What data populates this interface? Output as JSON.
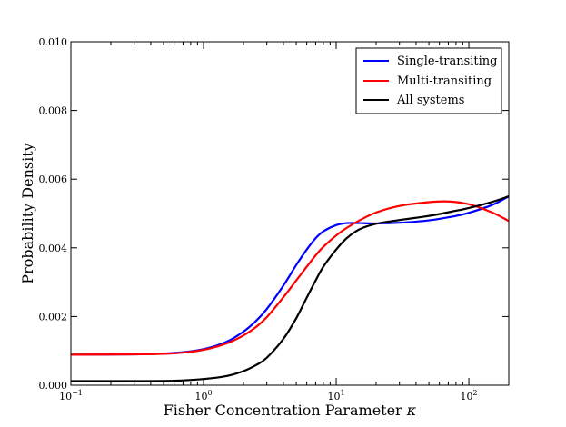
{
  "chart_data": {
    "type": "line",
    "xscale": "log",
    "xlim": [
      0.1,
      200
    ],
    "ylim": [
      0.0,
      0.01
    ],
    "xlabel": "Fisher Concentration Parameter",
    "xlabel_symbol": "κ",
    "ylabel": "Probability Density",
    "xticks": [
      {
        "value": 0.1,
        "base": "10",
        "exp": "−1"
      },
      {
        "value": 1,
        "base": "10",
        "exp": "0"
      },
      {
        "value": 10,
        "base": "10",
        "exp": "1"
      },
      {
        "value": 100,
        "base": "10",
        "exp": "2"
      }
    ],
    "yticks": [
      {
        "value": 0.0,
        "label": "0.000"
      },
      {
        "value": 0.002,
        "label": "0.002"
      },
      {
        "value": 0.004,
        "label": "0.004"
      },
      {
        "value": 0.006,
        "label": "0.006"
      },
      {
        "value": 0.008,
        "label": "0.008"
      },
      {
        "value": 0.01,
        "label": "0.010"
      }
    ],
    "legend_position": "top-right",
    "series": [
      {
        "name": "Single-transiting",
        "color": "#0000ff",
        "x": [
          0.1,
          0.3,
          0.6,
          1.0,
          1.5,
          2.0,
          2.5,
          3.0,
          4.0,
          5.0,
          6.0,
          7.0,
          8.0,
          10.0,
          12.0,
          15.0,
          20.0,
          30.0,
          50.0,
          80.0,
          100.0,
          150.0,
          200.0
        ],
        "y": [
          0.00089,
          0.0009,
          0.00094,
          0.00105,
          0.00127,
          0.00156,
          0.00188,
          0.00222,
          0.0029,
          0.0035,
          0.00395,
          0.00428,
          0.00448,
          0.00466,
          0.00472,
          0.00472,
          0.00471,
          0.00473,
          0.0048,
          0.00493,
          0.00502,
          0.00525,
          0.0055
        ]
      },
      {
        "name": "Multi-transiting",
        "color": "#ff0000",
        "x": [
          0.1,
          0.3,
          0.6,
          1.0,
          1.5,
          2.0,
          2.5,
          3.0,
          4.0,
          5.0,
          6.0,
          7.0,
          8.0,
          10.0,
          12.0,
          15.0,
          20.0,
          30.0,
          50.0,
          70.0,
          100.0,
          150.0,
          200.0
        ],
        "y": [
          0.00089,
          0.0009,
          0.00093,
          0.00103,
          0.00122,
          0.00145,
          0.0017,
          0.00198,
          0.00256,
          0.00305,
          0.00345,
          0.00378,
          0.00403,
          0.00436,
          0.00458,
          0.0048,
          0.00503,
          0.00522,
          0.00533,
          0.00535,
          0.00527,
          0.00503,
          0.00478
        ]
      },
      {
        "name": "All systems",
        "color": "#000000",
        "x": [
          0.1,
          0.3,
          0.6,
          1.0,
          1.5,
          2.0,
          2.5,
          3.0,
          4.0,
          5.0,
          6.0,
          7.0,
          8.0,
          10.0,
          12.0,
          15.0,
          20.0,
          30.0,
          50.0,
          80.0,
          100.0,
          150.0,
          200.0
        ],
        "y": [
          0.00012,
          0.00012,
          0.00013,
          0.00018,
          0.00027,
          0.00041,
          0.00059,
          0.0008,
          0.00135,
          0.00195,
          0.00255,
          0.00305,
          0.00345,
          0.00395,
          0.00428,
          0.00454,
          0.0047,
          0.00481,
          0.00493,
          0.00508,
          0.00516,
          0.00534,
          0.0055
        ]
      }
    ]
  }
}
